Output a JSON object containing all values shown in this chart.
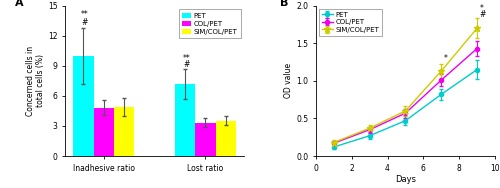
{
  "panel_A": {
    "ylabel": "Concerned cells in\ntotal cells (%)",
    "categories": [
      "Inadhesive ratio",
      "Lost ratio"
    ],
    "groups": [
      "PET",
      "COL/PET",
      "SIM/COL/PET"
    ],
    "colors": [
      "#00FFFF",
      "#FF00FF",
      "#FFFF00"
    ],
    "values": [
      [
        10.0,
        4.8,
        4.9
      ],
      [
        7.2,
        3.3,
        3.5
      ]
    ],
    "errors": [
      [
        2.8,
        0.75,
        0.9
      ],
      [
        1.5,
        0.45,
        0.45
      ]
    ],
    "ylim": [
      0,
      15
    ],
    "yticks": [
      0,
      3,
      6,
      9,
      12,
      15
    ]
  },
  "panel_B": {
    "xlabel": "Days",
    "ylabel": "OD value",
    "colors": [
      "#00CCCC",
      "#EE00EE",
      "#CCCC00"
    ],
    "days": [
      1,
      3,
      5,
      7,
      9
    ],
    "PET_values": [
      0.12,
      0.27,
      0.47,
      0.82,
      1.15
    ],
    "COL_PET_values": [
      0.17,
      0.35,
      0.57,
      1.01,
      1.43
    ],
    "SIM_COL_PET_values": [
      0.18,
      0.37,
      0.6,
      1.13,
      1.7
    ],
    "PET_errors": [
      0.03,
      0.04,
      0.06,
      0.07,
      0.13
    ],
    "COL_PET_errors": [
      0.03,
      0.04,
      0.06,
      0.08,
      0.1
    ],
    "SIM_COL_PET_errors": [
      0.03,
      0.04,
      0.07,
      0.1,
      0.13
    ],
    "ylim": [
      0.0,
      2.0
    ],
    "yticks": [
      0.0,
      0.5,
      1.0,
      1.5,
      2.0
    ],
    "xlim": [
      0,
      10
    ],
    "xticks": [
      0,
      2,
      4,
      6,
      8,
      10
    ]
  }
}
